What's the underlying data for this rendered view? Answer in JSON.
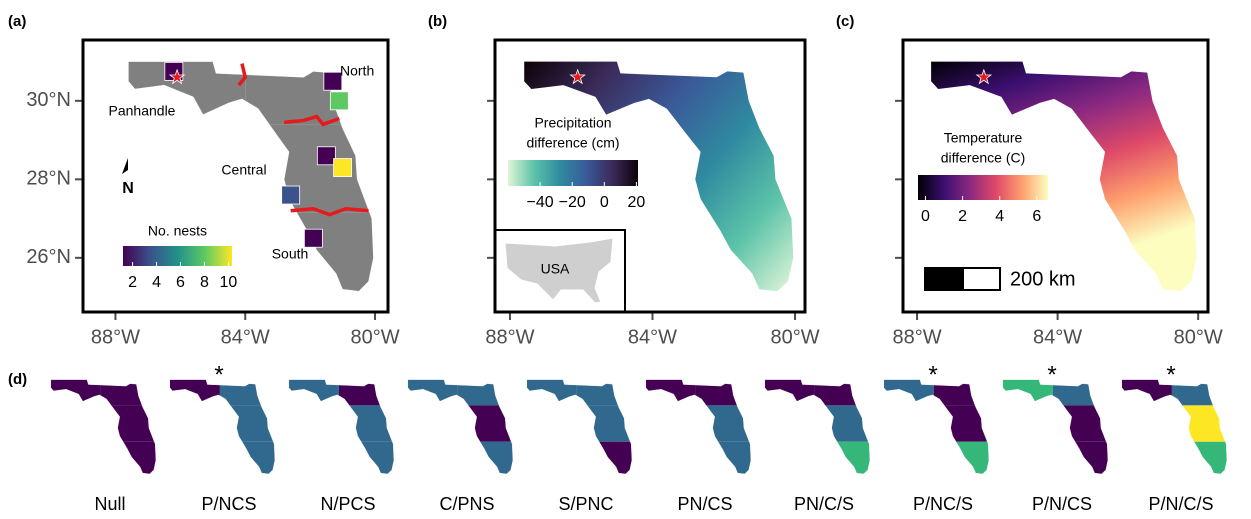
{
  "chart_data": [
    {
      "type": "map",
      "fill": "counties",
      "panel_label": "(a)",
      "xlim": [
        -89,
        -79.6
      ],
      "ylim": [
        24.62,
        31.55
      ],
      "xticks": [
        {
          "value": -88,
          "label": "88°W"
        },
        {
          "value": -84,
          "label": "84°W"
        },
        {
          "value": -80,
          "label": "80°W"
        }
      ],
      "yticks": [
        {
          "value": 30,
          "label": "30°N"
        },
        {
          "value": 28,
          "label": "28°N"
        },
        {
          "value": 26,
          "label": "26°N"
        }
      ],
      "region_labels": [
        "North",
        "Panhandle",
        "Central",
        "South"
      ],
      "north_arrow": "N",
      "legend": {
        "title": "No. nests",
        "lim": [
          1.2,
          10.3
        ],
        "ticks": [
          2,
          4,
          6,
          8,
          10
        ],
        "colors": [
          "#440154",
          "#3b528b",
          "#21918c",
          "#5ec962",
          "#fde725"
        ]
      }
    },
    {
      "type": "map",
      "fill": "precipitation",
      "panel_label": "(b)",
      "xlim": [
        -88.42,
        -79.72
      ],
      "ylim": [
        24.62,
        31.55
      ],
      "xticks": [
        {
          "value": -88,
          "label": "88°W"
        },
        {
          "value": -84,
          "label": "84°W"
        },
        {
          "value": -80,
          "label": "80°W"
        }
      ],
      "yticks": [
        30,
        28,
        26
      ],
      "ytick_labels": false,
      "inset": "USA",
      "legend": {
        "title_lines": [
          "Precipitation",
          "difference (cm)"
        ],
        "lim": [
          -60,
          21
        ],
        "ticks": [
          {
            "value": -40,
            "label": "−40"
          },
          {
            "value": -20,
            "label": "−20"
          },
          0,
          20
        ],
        "colors": [
          "#dff5d8",
          "#5cc3a8",
          "#2f8aa0",
          "#3a5a99",
          "#3b2b5a",
          "#0d0208"
        ]
      }
    },
    {
      "type": "map",
      "fill": "temperature",
      "panel_label": "(c)",
      "xlim": [
        -88.4,
        -79.72
      ],
      "ylim": [
        24.62,
        31.55
      ],
      "xticks": [
        {
          "value": -88,
          "label": "88°W"
        },
        {
          "value": -84,
          "label": "84°W"
        },
        {
          "value": -80,
          "label": "80°W"
        }
      ],
      "yticks": [
        30,
        28,
        26
      ],
      "ytick_labels": false,
      "scale_bar": "200 km",
      "legend": {
        "title_lines": [
          "Temperature",
          "difference (C)"
        ],
        "lim": [
          -0.4,
          6.6
        ],
        "ticks": [
          0,
          2,
          4,
          6
        ],
        "colors": [
          "#000004",
          "#3b0f70",
          "#8c2981",
          "#de4968",
          "#fe9f6d",
          "#fcfdbf"
        ]
      }
    },
    {
      "type": "model-maps",
      "panel_label": "(d)",
      "models": [
        {
          "label": "Null",
          "colors": [
            "#440154",
            "#440154",
            "#440154",
            "#440154"
          ]
        },
        {
          "label": "P/NCS",
          "star": "*",
          "colors": [
            "#440154",
            "#31688e",
            "#31688e",
            "#31688e"
          ]
        },
        {
          "label": "N/PCS",
          "colors": [
            "#31688e",
            "#440154",
            "#31688e",
            "#31688e"
          ]
        },
        {
          "label": "C/PNS",
          "colors": [
            "#31688e",
            "#31688e",
            "#440154",
            "#31688e"
          ]
        },
        {
          "label": "S/PNC",
          "colors": [
            "#31688e",
            "#31688e",
            "#31688e",
            "#440154"
          ]
        },
        {
          "label": "PN/CS",
          "colors": [
            "#440154",
            "#440154",
            "#31688e",
            "#31688e"
          ]
        },
        {
          "label": "PN/C/S",
          "colors": [
            "#440154",
            "#440154",
            "#31688e",
            "#35b779"
          ]
        },
        {
          "label": "P/NC/S",
          "star": "*",
          "colors": [
            "#31688e",
            "#440154",
            "#440154",
            "#35b779"
          ]
        },
        {
          "label": "P/N/CS",
          "star": "*",
          "colors": [
            "#35b779",
            "#31688e",
            "#440154",
            "#440154"
          ]
        },
        {
          "label": "P/N/C/S",
          "star": "*",
          "colors": [
            "#440154",
            "#31688e",
            "#fde725",
            "#35b779"
          ]
        }
      ]
    }
  ]
}
